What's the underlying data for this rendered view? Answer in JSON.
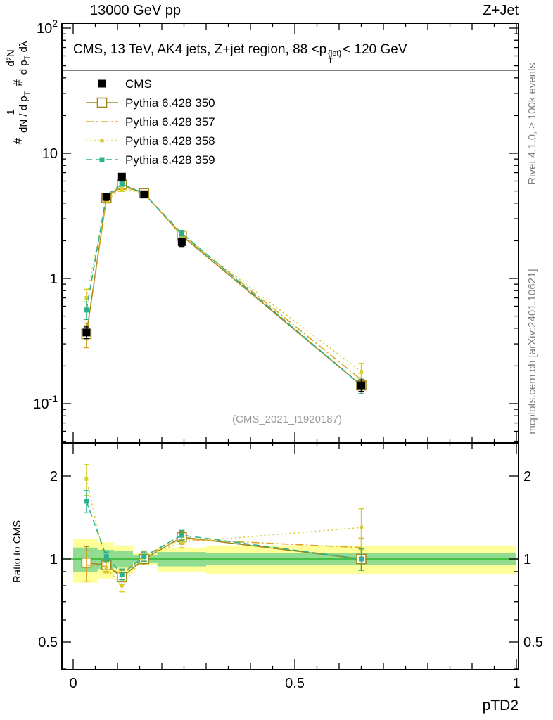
{
  "header": {
    "left": "13000 GeV pp",
    "right": "Z+Jet"
  },
  "title": {
    "pre": "CMS, 13 TeV, AK4 jets, Z+jet region, 88 <p",
    "sup": "{jet}",
    "sub": "T",
    "post": "< 120 GeV"
  },
  "watermark": "(CMS_2021_I1920187)",
  "notes": {
    "rivet": "Rivet 4.1.0, ≥ 100k events",
    "mcplots": "mcplots.cern.ch [arXiv:2401.10621]"
  },
  "labels": {
    "y_top": {
      "h1": "#",
      "f1num": "1",
      "f1den": "dN / d p",
      "f1densub": "T",
      "h2": "#",
      "f2num": "d²N",
      "f2den": "d p",
      "f2densub": "T",
      "f2den2": " dλ"
    },
    "y_ratio": "Ratio to CMS",
    "x": "pTD2"
  },
  "chart_data": {
    "type": "line",
    "title": "CMS, 13 TeV, AK4 jets, Z+jet region, 88 < pT{jet} < 120 GeV",
    "xlabel": "pTD2",
    "ylabel": "1/(dN/dpT) d2N/(dpT dlambda)",
    "ylabel_ratio": "Ratio to CMS",
    "xlim": [
      0,
      1
    ],
    "x": [
      0.03,
      0.075,
      0.11,
      0.16,
      0.245,
      0.65
    ],
    "xtick_labels": [
      {
        "v": 0,
        "label": "0"
      },
      {
        "v": 0.5,
        "label": "0.5"
      },
      {
        "v": 1,
        "label": "1"
      }
    ],
    "colors": {
      "band_yellow": "#ffff99",
      "band_green": "#90dc90",
      "ref_line_green": "#2fb52f"
    },
    "top_panel": {
      "yscale": "log",
      "ylim": [
        0.049,
        110
      ],
      "ytick_labels": [
        {
          "v": 0.1,
          "base": "10",
          "exp": "-1"
        },
        {
          "v": 1,
          "label": "1"
        },
        {
          "v": 10,
          "label": "10"
        },
        {
          "v": 100,
          "base": "10",
          "exp": "2"
        }
      ],
      "series": [
        {
          "name": "CMS",
          "color": "#000000",
          "line": "none",
          "marker": "filled-square",
          "values": [
            0.37,
            4.5,
            6.5,
            4.7,
            1.95,
            0.14
          ],
          "yerr": [
            0.04,
            0.3,
            0.4,
            0.3,
            0.15,
            0.015
          ]
        },
        {
          "name": "Pythia 6.428 350",
          "color": "#a08818",
          "line": "solid",
          "marker": "open-square",
          "values": [
            0.36,
            4.4,
            5.6,
            4.8,
            2.2,
            0.14
          ],
          "yerr": [
            0.08,
            0.25,
            0.3,
            0.25,
            0.15,
            0.02
          ]
        },
        {
          "name": "Pythia 6.428 357",
          "color": "#dfa520",
          "line": "dashdot",
          "marker": "none",
          "values": [
            0.35,
            4.3,
            5.5,
            4.75,
            2.25,
            0.155
          ],
          "yerr": [
            0.07,
            0.2,
            0.25,
            0.2,
            0.12,
            0.02
          ]
        },
        {
          "name": "Pythia 6.428 358",
          "color": "#d6ce2a",
          "line": "dotted",
          "marker": "tiny-filled-square",
          "values": [
            0.7,
            4.2,
            5.2,
            4.8,
            2.2,
            0.18
          ],
          "yerr": [
            0.12,
            0.2,
            0.25,
            0.2,
            0.12,
            0.03
          ]
        },
        {
          "name": "Pythia 6.428 359",
          "color": "#2eb08c",
          "line": "dashed",
          "marker": "small-filled-square",
          "values": [
            0.56,
            4.6,
            5.7,
            4.75,
            2.3,
            0.14
          ],
          "yerr": [
            0.09,
            0.2,
            0.25,
            0.2,
            0.12,
            0.02
          ]
        }
      ]
    },
    "ratio_panel": {
      "yscale": "log",
      "ylim": [
        0.397,
        2.64
      ],
      "ytick_labels": [
        {
          "v": 0.5,
          "label": "0.5"
        },
        {
          "v": 1,
          "label": "1"
        },
        {
          "v": 2,
          "label": "2"
        }
      ],
      "reference": 1,
      "bands": [
        {
          "x0": 0.0,
          "x1": 0.055,
          "yellow": [
            0.82,
            1.18
          ],
          "green": [
            0.9,
            1.1
          ]
        },
        {
          "x0": 0.055,
          "x1": 0.092,
          "yellow": [
            0.85,
            1.15
          ],
          "green": [
            0.92,
            1.08
          ]
        },
        {
          "x0": 0.092,
          "x1": 0.135,
          "yellow": [
            0.88,
            1.12
          ],
          "green": [
            0.93,
            1.07
          ]
        },
        {
          "x0": 0.135,
          "x1": 0.19,
          "yellow": [
            0.95,
            1.05
          ],
          "green": [
            0.97,
            1.03
          ]
        },
        {
          "x0": 0.19,
          "x1": 0.3,
          "yellow": [
            0.9,
            1.1
          ],
          "green": [
            0.94,
            1.06
          ]
        },
        {
          "x0": 0.3,
          "x1": 1.0,
          "yellow": [
            0.88,
            1.12
          ],
          "green": [
            0.95,
            1.05
          ]
        }
      ],
      "series": [
        {
          "name": "Pythia 6.428 350",
          "color": "#a08818",
          "line": "solid",
          "marker": "open-square",
          "values": [
            0.97,
            0.95,
            0.86,
            1.0,
            1.2,
            1.0
          ],
          "yerr": [
            0.14,
            0.05,
            0.05,
            0.04,
            0.06,
            0.09
          ]
        },
        {
          "name": "Pythia 6.428 357",
          "color": "#dfa520",
          "line": "dashdot",
          "marker": "none",
          "values": [
            0.95,
            0.94,
            0.88,
            1.03,
            1.18,
            1.1
          ],
          "yerr": [
            0.12,
            0.04,
            0.04,
            0.04,
            0.05,
            0.09
          ]
        },
        {
          "name": "Pythia 6.428 358",
          "color": "#d6ce2a",
          "line": "dotted",
          "marker": "tiny-filled-square",
          "values": [
            1.95,
            0.93,
            0.8,
            1.02,
            1.15,
            1.3
          ],
          "yerr": [
            0.25,
            0.04,
            0.04,
            0.04,
            0.05,
            0.22
          ]
        },
        {
          "name": "Pythia 6.428 359",
          "color": "#2eb08c",
          "line": "dashed",
          "marker": "small-filled-square",
          "values": [
            1.62,
            1.02,
            0.88,
            1.02,
            1.22,
            1.0
          ],
          "yerr": [
            0.15,
            0.04,
            0.04,
            0.04,
            0.05,
            0.09
          ]
        }
      ]
    }
  }
}
